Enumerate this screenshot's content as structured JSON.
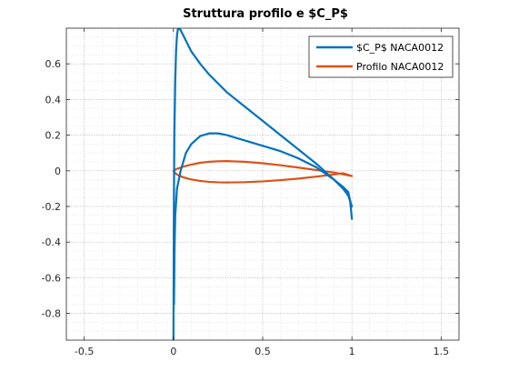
{
  "chart_data": {
    "type": "line",
    "title": "Struttura profilo e $C_P$",
    "xlabel": "",
    "ylabel": "",
    "xlim": [
      -0.6,
      1.6
    ],
    "ylim": [
      -0.95,
      0.8
    ],
    "xticks": [
      -0.5,
      0,
      0.5,
      1,
      1.5
    ],
    "xtick_labels": [
      "-0.5",
      "0",
      "0.5",
      "1",
      "1.5"
    ],
    "yticks": [
      -0.8,
      -0.6,
      -0.4,
      -0.2,
      0,
      0.2,
      0.4,
      0.6
    ],
    "ytick_labels": [
      "-0.8",
      "-0.6",
      "-0.4",
      "-0.2",
      "0",
      "0.2",
      "0.4",
      "0.6"
    ],
    "grid": "on (major and minor)",
    "legend_position": "top-right",
    "series": [
      {
        "name": "$C_P$ NACA0012",
        "color": "#0072BD",
        "branches": [
          {
            "x": [
              0.0,
              0.002,
              0.005,
              0.01,
              0.015,
              0.02,
              0.025,
              0.03,
              0.04,
              0.05,
              0.07,
              0.1,
              0.15,
              0.2,
              0.25,
              0.3,
              0.4,
              0.5,
              0.6,
              0.7,
              0.8,
              0.9,
              0.95,
              0.98,
              0.99,
              1.0
            ],
            "y": [
              -0.95,
              -0.3,
              0.2,
              0.5,
              0.68,
              0.76,
              0.795,
              0.8,
              0.79,
              0.77,
              0.73,
              0.67,
              0.6,
              0.54,
              0.49,
              0.44,
              0.36,
              0.28,
              0.2,
              0.12,
              0.04,
              -0.05,
              -0.09,
              -0.12,
              -0.17,
              -0.27
            ]
          },
          {
            "x": [
              0.003,
              0.006,
              0.01,
              0.02,
              0.04,
              0.07,
              0.1,
              0.15,
              0.2,
              0.25,
              0.3,
              0.35,
              0.4,
              0.5,
              0.6,
              0.7,
              0.8,
              0.9,
              0.95,
              0.98,
              1.0
            ],
            "y": [
              -0.75,
              -0.45,
              -0.25,
              -0.1,
              0.0,
              0.1,
              0.15,
              0.195,
              0.21,
              0.21,
              0.2,
              0.185,
              0.17,
              0.14,
              0.11,
              0.07,
              0.02,
              -0.05,
              -0.1,
              -0.14,
              -0.2
            ]
          }
        ]
      },
      {
        "name": "Profilo NACA0012",
        "color": "#D95319",
        "branches": [
          {
            "x": [
              1.0,
              0.95,
              0.9,
              0.8,
              0.7,
              0.6,
              0.5,
              0.4,
              0.3,
              0.25,
              0.2,
              0.15,
              0.1,
              0.075,
              0.05,
              0.025,
              0.0125,
              0.005,
              0.0,
              0.005,
              0.0125,
              0.025,
              0.05,
              0.075,
              0.1,
              0.15,
              0.2,
              0.25,
              0.3,
              0.4,
              0.5,
              0.6,
              0.7,
              0.8,
              0.9,
              0.95,
              1.0
            ],
            "y": [
              -0.0291,
              -0.0198,
              -0.0097,
              0.0043,
              0.0181,
              0.0312,
              0.0424,
              0.0505,
              0.0544,
              0.0536,
              0.0508,
              0.0449,
              0.0351,
              0.0287,
              0.0214,
              0.0128,
              0.0078,
              0.0035,
              0.0,
              -0.0072,
              -0.0152,
              -0.0237,
              -0.0345,
              -0.0423,
              -0.0484,
              -0.0569,
              -0.0619,
              -0.0645,
              -0.0656,
              -0.0639,
              -0.0594,
              -0.0525,
              -0.0436,
              -0.0327,
              -0.0204,
              -0.0139,
              -0.0291
            ]
          }
        ]
      }
    ]
  }
}
